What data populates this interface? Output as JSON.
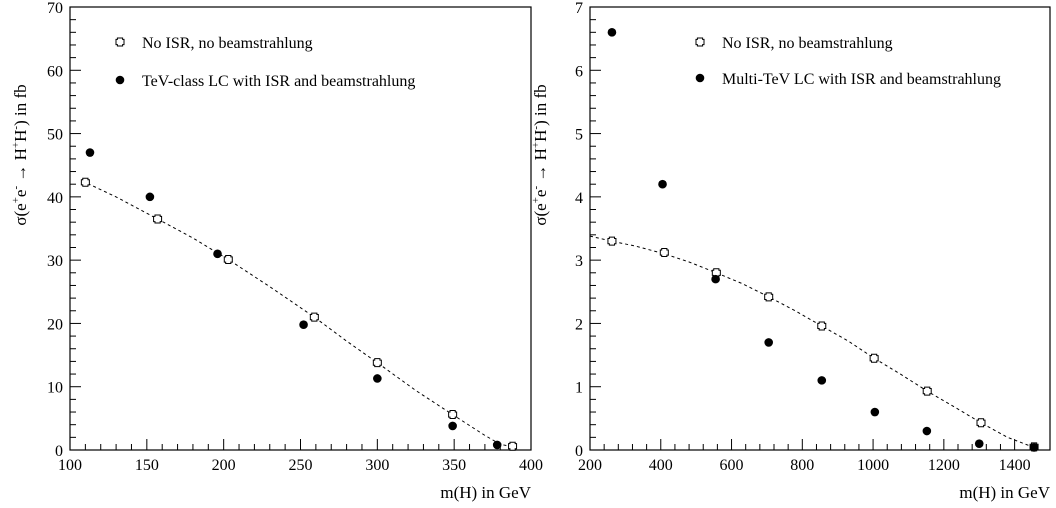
{
  "chart_data": [
    {
      "type": "scatter",
      "xlabel": "m(H) in GeV",
      "ylabel": {
        "base": "σ(e",
        "sup1": "+",
        "mid1": "e",
        "sup2": "-",
        "arrow": " → H",
        "sup3": "+",
        "mid2": "H",
        "sup4": "-",
        "tail": ") in fb"
      },
      "xlim": [
        100,
        400
      ],
      "ylim": [
        0,
        70
      ],
      "xticks": [
        100,
        150,
        200,
        250,
        300,
        350,
        400
      ],
      "yticks": [
        0,
        10,
        20,
        30,
        40,
        50,
        60,
        70
      ],
      "legend_position": "top-left",
      "series": [
        {
          "name": "No ISR, no beamstrahlung",
          "marker": "open-cross",
          "x": [
            110,
            157,
            203,
            259,
            300,
            349,
            388
          ],
          "y": [
            42.3,
            36.5,
            30.1,
            21.0,
            13.8,
            5.6,
            0.6
          ]
        },
        {
          "name": "TeV-class LC with ISR and beamstrahlung",
          "marker": "filled-circle",
          "x": [
            113,
            152,
            196,
            252,
            300,
            349,
            378
          ],
          "y": [
            47.0,
            40.0,
            31.0,
            19.8,
            11.3,
            3.8,
            0.8
          ]
        }
      ],
      "curve": {
        "style": "dashed",
        "x": [
          108,
          130,
          157,
          180,
          203,
          230,
          259,
          280,
          300,
          325,
          349,
          370,
          380,
          388
        ],
        "y": [
          42.5,
          40.0,
          36.5,
          33.5,
          30.1,
          25.8,
          21.0,
          17.2,
          13.8,
          9.4,
          5.6,
          2.3,
          0.9,
          0.5
        ]
      }
    },
    {
      "type": "scatter",
      "xlabel": "m(H) in GeV",
      "ylabel": {
        "base": "σ(e",
        "sup1": "+",
        "mid1": "e",
        "sup2": "-",
        "arrow": " → H",
        "sup3": "+",
        "mid2": "H",
        "sup4": "-",
        "tail": ") in fb"
      },
      "xlim": [
        200,
        1500
      ],
      "ylim": [
        0,
        7
      ],
      "xticks": [
        200,
        400,
        600,
        800,
        1000,
        1200,
        1400
      ],
      "yticks": [
        0,
        1,
        2,
        3,
        4,
        5,
        6,
        7
      ],
      "legend_position": "top-center",
      "series": [
        {
          "name": "No ISR, no beamstrahlung",
          "marker": "open-cross",
          "x": [
            262,
            410,
            557,
            705,
            855,
            1003,
            1153,
            1305,
            1455
          ],
          "y": [
            3.3,
            3.12,
            2.8,
            2.42,
            1.96,
            1.45,
            0.93,
            0.43,
            0.05
          ]
        },
        {
          "name": "Multi-TeV LC with ISR and beamstrahlung",
          "marker": "filled-circle",
          "x": [
            262,
            405,
            555,
            705,
            855,
            1005,
            1152,
            1300,
            1455
          ],
          "y": [
            6.6,
            4.2,
            2.7,
            1.7,
            1.1,
            0.6,
            0.3,
            0.1,
            0.04
          ]
        }
      ],
      "curve": {
        "style": "dashed",
        "x": [
          200,
          262,
          330,
          410,
          480,
          557,
          630,
          705,
          780,
          855,
          930,
          1003,
          1080,
          1153,
          1230,
          1305,
          1380,
          1455
        ],
        "y": [
          3.38,
          3.3,
          3.22,
          3.1,
          2.97,
          2.8,
          2.63,
          2.42,
          2.2,
          1.96,
          1.72,
          1.45,
          1.19,
          0.93,
          0.68,
          0.43,
          0.2,
          0.04
        ]
      }
    }
  ]
}
